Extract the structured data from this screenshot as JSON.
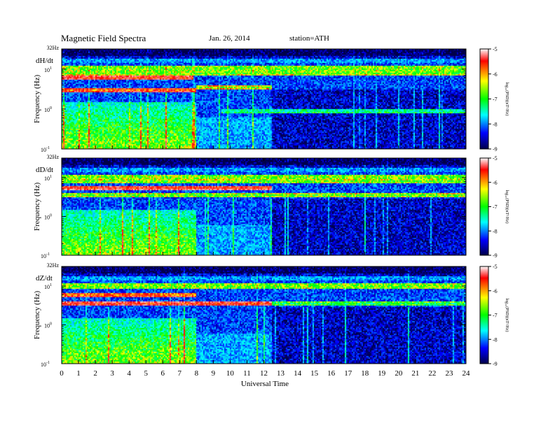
{
  "header": {
    "title": "Magnetic  Field  Spectra",
    "date": "Jan. 26, 2014",
    "station": "station=ATH"
  },
  "colorbar": {
    "label": "log₁₀(PSD)(nT²/Hz)",
    "ticks": [
      "-5",
      "-6",
      "-7",
      "-8",
      "-9"
    ],
    "colors": [
      "#ffffff",
      "#ff0000",
      "#ffff00",
      "#00ff00",
      "#00ffff",
      "#0000ff",
      "#00004a"
    ]
  },
  "axes": {
    "xlabel": "Universal Time",
    "ylabel": "Frequency (Hz)",
    "top_label": "32Hz",
    "y_ticks": [
      "10¹",
      "10⁰",
      "10⁻¹"
    ],
    "y_tick_html": [
      {
        "base": "10",
        "exp": "1"
      },
      {
        "base": "10",
        "exp": "0"
      },
      {
        "base": "10",
        "exp": "-1"
      }
    ],
    "x_ticks": [
      "0",
      "1",
      "2",
      "3",
      "4",
      "5",
      "6",
      "7",
      "8",
      "9",
      "10",
      "11",
      "12",
      "13",
      "14",
      "15",
      "16",
      "17",
      "18",
      "19",
      "20",
      "21",
      "22",
      "23",
      "24"
    ]
  },
  "chart_data": [
    {
      "type": "heatmap",
      "component": "dH/dt",
      "xlabel": "Universal Time",
      "ylabel": "Frequency (Hz)",
      "xlim": [
        0,
        24
      ],
      "ylim": [
        0.1,
        32
      ],
      "y_scale": "log",
      "colorbar_range": [
        -9,
        -5
      ],
      "colorbar_label": "log₁₀(PSD)(nT²/Hz)",
      "features": {
        "bands": [
          {
            "freq": 6.0,
            "t_start": 0,
            "t_end": 7.8,
            "level": -6.0
          },
          {
            "freq": 3.0,
            "t_start": 0,
            "t_end": 8.0,
            "level": -6.2
          },
          {
            "freq": 3.5,
            "t_start": 8.0,
            "t_end": 12.5,
            "level": -6.8
          },
          {
            "freq": 8.0,
            "t_start": 0,
            "t_end": 24,
            "level": -7.0
          },
          {
            "freq": 0.9,
            "t_start": 9.5,
            "t_end": 24,
            "level": -7.6
          }
        ],
        "active_low_freq_interval": [
          0,
          8.0
        ],
        "quiet_interval": [
          12.5,
          24
        ]
      }
    },
    {
      "type": "heatmap",
      "component": "dD/dt",
      "xlabel": "Universal Time",
      "ylabel": "Frequency (Hz)",
      "xlim": [
        0,
        24
      ],
      "ylim": [
        0.1,
        32
      ],
      "y_scale": "log",
      "colorbar_range": [
        -9,
        -5
      ],
      "colorbar_label": "log₁₀(PSD)(nT²/Hz)",
      "features": {
        "bands": [
          {
            "freq": 5.5,
            "t_start": 0,
            "t_end": 12.5,
            "level": -6.0
          },
          {
            "freq": 3.5,
            "t_start": 0,
            "t_end": 24,
            "level": -7.0
          },
          {
            "freq": 8.0,
            "t_start": 0,
            "t_end": 24,
            "level": -7.0
          }
        ],
        "active_low_freq_interval": [
          0,
          8.0
        ],
        "quiet_interval": [
          12.5,
          24
        ]
      }
    },
    {
      "type": "heatmap",
      "component": "dZ/dt",
      "xlabel": "Universal Time",
      "ylabel": "Frequency (Hz)",
      "xlim": [
        0,
        24
      ],
      "ylim": [
        0.1,
        32
      ],
      "y_scale": "log",
      "colorbar_range": [
        -9,
        -5
      ],
      "colorbar_label": "log₁₀(PSD)(nT²/Hz)",
      "features": {
        "bands": [
          {
            "freq": 6.0,
            "t_start": 0,
            "t_end": 8.0,
            "level": -6.3
          },
          {
            "freq": 3.5,
            "t_start": 0,
            "t_end": 12.5,
            "level": -6.0
          },
          {
            "freq": 3.5,
            "t_start": 12.5,
            "t_end": 24,
            "level": -7.3
          }
        ],
        "active_low_freq_interval": [
          0,
          8.0
        ],
        "quiet_interval": [
          12.5,
          24
        ]
      }
    }
  ]
}
